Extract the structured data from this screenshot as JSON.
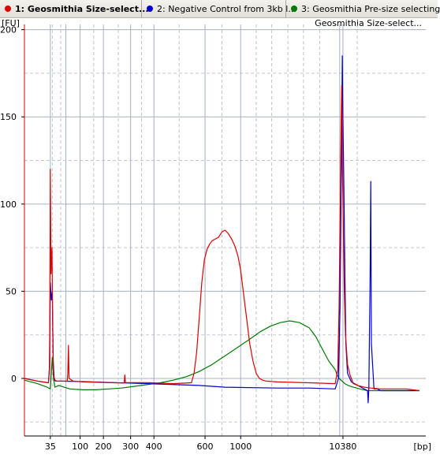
{
  "tabs": [
    {
      "label": "1: Geosmithia Size-select...",
      "color": "#dd0000",
      "active": true
    },
    {
      "label": "2: Negative Control from 3kb l...",
      "color": "#0000cc",
      "active": false
    },
    {
      "label": "3: Geosmithia Pre-size selecting",
      "color": "#007a00",
      "active": false
    }
  ],
  "chart_data": {
    "type": "line",
    "title": "Geosmithia Size-select...",
    "ylabel": "[FU]",
    "xlabel": "[bp]",
    "ylim": [
      -33,
      203
    ],
    "yticks": [
      0,
      50,
      100,
      150,
      200
    ],
    "x_axis_scale": "bp (electropherogram, non-linear)",
    "xticks": [
      35,
      100,
      200,
      300,
      400,
      600,
      1000,
      10380
    ],
    "xticks_position_seconds": [
      35.0,
      39.6,
      43.2,
      47.4,
      51.0,
      58.9,
      64.4,
      80.2
    ],
    "xticks_label_shown": [
      "35",
      "100",
      "200",
      "300",
      "400",
      "600",
      "1000",
      "10380"
    ],
    "x_unit": "seconds",
    "xlim": [
      31.0,
      93.0
    ],
    "ladder_markers_seconds": [
      35.0,
      35.3,
      36.6,
      37.4,
      39.6,
      41.7,
      43.2,
      45.5,
      47.4,
      49.1,
      51.0,
      54.9,
      58.9,
      61.5,
      64.4,
      66.8,
      69.2,
      71.7,
      74.1,
      76.6,
      79.7,
      80.2,
      82.4
    ],
    "grid": true,
    "legend": "top tab bar",
    "series": [
      {
        "name": "1: Geosmithia Size-select...",
        "color": "#dd0000",
        "x": [
          31.0,
          33.0,
          34.7,
          34.9,
          35.0,
          35.1,
          35.25,
          35.4,
          35.5,
          35.7,
          36.0,
          37.0,
          37.6,
          37.7,
          37.8,
          37.9,
          38.5,
          40.0,
          45.0,
          46.4,
          46.5,
          46.6,
          50.0,
          54.0,
          56.8,
          57.2,
          57.6,
          58.0,
          58.4,
          58.8,
          59.2,
          59.6,
          60.0,
          60.5,
          61.0,
          61.5,
          62.0,
          62.5,
          63.0,
          63.5,
          64.0,
          64.4,
          64.8,
          65.3,
          65.8,
          66.3,
          66.8,
          67.3,
          67.8,
          68.3,
          70.0,
          75.0,
          79.0,
          79.4,
          79.6,
          79.8,
          79.9,
          80.0,
          80.1,
          80.25,
          80.4,
          80.6,
          80.9,
          81.3,
          81.8,
          82.5,
          83.5,
          84.5,
          86.0,
          88.0,
          90.0,
          92.0
        ],
        "y": [
          0,
          -1.5,
          -2.5,
          8,
          120,
          60,
          75,
          20,
          2,
          -1,
          -1.5,
          -1.5,
          -1.5,
          3,
          19,
          0,
          -1.5,
          -2,
          -2.5,
          -2.6,
          2,
          -2.4,
          -2.4,
          -3,
          -2.5,
          3,
          15,
          35,
          55,
          68,
          74,
          77,
          79,
          80,
          81,
          84,
          85,
          83,
          80,
          76,
          70,
          62,
          50,
          35,
          20,
          10,
          3,
          0,
          -1,
          -1.5,
          -2,
          -2.5,
          -3,
          5,
          40,
          100,
          145,
          168,
          125,
          90,
          50,
          25,
          8,
          2,
          -3,
          -4,
          -5,
          -5.5,
          -6,
          -6,
          -6,
          -7
        ]
      },
      {
        "name": "2: Negative Control from 3kb l...",
        "color": "#0000cc",
        "x": [
          31.0,
          33.0,
          34.7,
          34.85,
          35.0,
          35.15,
          35.3,
          35.45,
          35.6,
          35.8,
          40.0,
          50.0,
          58.0,
          62.0,
          70.0,
          75.0,
          79.0,
          79.5,
          79.75,
          79.95,
          80.1,
          80.2,
          80.35,
          80.5,
          80.65,
          80.9,
          81.5,
          83.0,
          84.0,
          84.1,
          84.2,
          84.4,
          84.5,
          84.6,
          85.0,
          85.5,
          86.0,
          88.0,
          90.0,
          92.0
        ],
        "y": [
          0,
          -1.5,
          -2.5,
          5,
          55,
          45,
          50,
          10,
          -1,
          -1.5,
          -1.8,
          -3,
          -4,
          -5,
          -5.5,
          -5.5,
          -6,
          0,
          40,
          120,
          185,
          150,
          110,
          60,
          20,
          3,
          -2,
          -5,
          -7,
          -14,
          -5,
          60,
          113,
          20,
          -6,
          -6,
          -7,
          -7,
          -7,
          -7
        ]
      },
      {
        "name": "3: Geosmithia Pre-size selecting",
        "color": "#007a00",
        "x": [
          31.0,
          33.0,
          34.5,
          35.0,
          35.3,
          35.5,
          35.7,
          36.3,
          38.0,
          40.0,
          42.0,
          44.0,
          46.0,
          48.0,
          50.0,
          52.0,
          54.0,
          56.0,
          58.0,
          60.0,
          62.0,
          64.0,
          66.0,
          67.5,
          69.0,
          70.5,
          72.0,
          73.5,
          75.0,
          76.0,
          77.0,
          78.0,
          79.0,
          79.3,
          79.6,
          80.5,
          81.0,
          81.8,
          82.8,
          84.0,
          86.0,
          88.0,
          90.0,
          92.0
        ],
        "y": [
          -1,
          -3,
          -5,
          -6,
          12,
          0,
          -5,
          -4,
          -6,
          -6.5,
          -6.5,
          -6,
          -5.5,
          -4.5,
          -3.5,
          -2.5,
          -1,
          1,
          4,
          8,
          13,
          18,
          23,
          27,
          30,
          32,
          33,
          32,
          29,
          24,
          17,
          10,
          5,
          2,
          0,
          -3,
          -4,
          -5,
          -6,
          -7,
          -7,
          -7,
          -7,
          -7
        ]
      }
    ]
  }
}
